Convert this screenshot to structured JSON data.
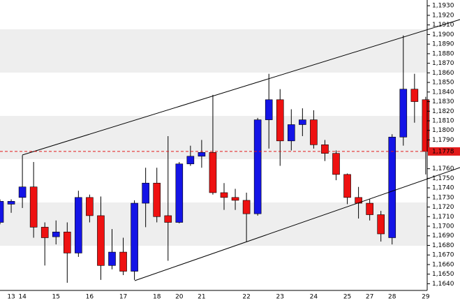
{
  "chart_data": {
    "type": "candlestick",
    "categories": [
      null,
      "13",
      "14",
      null,
      null,
      "15",
      null,
      null,
      "16",
      null,
      null,
      "17",
      null,
      null,
      "18",
      null,
      "20",
      null,
      "21",
      null,
      null,
      null,
      "22",
      null,
      null,
      "23",
      null,
      null,
      "24",
      null,
      null,
      "25",
      null,
      "27",
      null,
      "28",
      null,
      null,
      "29"
    ],
    "open": [
      1.1704,
      1.1723,
      1.173,
      1.1741,
      1.1699,
      1.1689,
      1.1694,
      1.1672,
      1.173,
      1.1711,
      1.1659,
      1.1673,
      1.1653,
      1.1724,
      1.1745,
      1.1711,
      1.1704,
      1.1765,
      1.1773,
      1.1777,
      1.1735,
      1.173,
      1.1727,
      1.1713,
      1.1811,
      1.1832,
      1.1789,
      1.1806,
      1.1811,
      1.1785,
      1.1776,
      1.1754,
      1.173,
      1.1724,
      1.1712,
      1.1688,
      1.1793,
      1.1843,
      1.1832
    ],
    "high": [
      1.1728,
      1.1728,
      1.1774,
      1.1767,
      1.1704,
      1.1706,
      1.1704,
      1.1737,
      1.1733,
      1.1731,
      1.1697,
      1.1688,
      1.1727,
      1.1761,
      1.1761,
      1.1794,
      1.1767,
      1.1784,
      1.179,
      1.1837,
      1.1745,
      1.1739,
      1.1735,
      1.1813,
      1.1859,
      1.1843,
      1.1822,
      1.1823,
      1.1821,
      1.179,
      1.1779,
      1.1755,
      1.1741,
      1.1728,
      1.1716,
      1.1796,
      1.1899,
      1.1859,
      1.1835
    ],
    "low": [
      1.1702,
      1.1714,
      1.1719,
      1.1688,
      1.1659,
      1.1681,
      1.1641,
      1.1668,
      1.1704,
      1.1644,
      1.1655,
      1.1649,
      1.1644,
      1.1699,
      1.1704,
      1.1664,
      1.1703,
      1.1763,
      1.1761,
      1.1733,
      1.1717,
      1.1717,
      1.1684,
      1.1711,
      1.1781,
      1.1763,
      1.1779,
      1.1794,
      1.1781,
      1.1768,
      1.1748,
      1.1723,
      1.1708,
      1.1706,
      1.1684,
      1.1681,
      1.1784,
      1.1808,
      1.1754
    ],
    "close": [
      1.1726,
      1.1726,
      1.1741,
      1.1699,
      1.1688,
      1.1694,
      1.1672,
      1.173,
      1.1711,
      1.1659,
      1.1673,
      1.1653,
      1.1724,
      1.1745,
      1.171,
      1.1704,
      1.1765,
      1.1773,
      1.1777,
      1.1735,
      1.173,
      1.1727,
      1.1713,
      1.1811,
      1.1832,
      1.1789,
      1.1806,
      1.1811,
      1.1785,
      1.1776,
      1.1754,
      1.173,
      1.1724,
      1.1712,
      1.1692,
      1.1793,
      1.1843,
      1.183,
      1.1778
    ],
    "up_color": "#1414e6",
    "down_color": "#ee1111",
    "ylim": [
      1.1633,
      1.1936
    ],
    "yticks": [
      {
        "value": 1.193,
        "label": "1,1930"
      },
      {
        "value": 1.192,
        "label": "1,1920"
      },
      {
        "value": 1.191,
        "label": "1,1910"
      },
      {
        "value": 1.19,
        "label": "1,1900"
      },
      {
        "value": 1.189,
        "label": "1,1890"
      },
      {
        "value": 1.188,
        "label": "1,1880"
      },
      {
        "value": 1.187,
        "label": "1,1870"
      },
      {
        "value": 1.186,
        "label": "1,1860"
      },
      {
        "value": 1.185,
        "label": "1,1850"
      },
      {
        "value": 1.184,
        "label": "1,1840"
      },
      {
        "value": 1.183,
        "label": "1,1830"
      },
      {
        "value": 1.182,
        "label": "1,1820"
      },
      {
        "value": 1.181,
        "label": "1,1810"
      },
      {
        "value": 1.18,
        "label": "1,1800"
      },
      {
        "value": 1.179,
        "label": "1,1790"
      },
      {
        "value": 1.176,
        "label": "1,1760"
      },
      {
        "value": 1.175,
        "label": "1,1750"
      },
      {
        "value": 1.174,
        "label": "1,1740"
      },
      {
        "value": 1.173,
        "label": "1,1730"
      },
      {
        "value": 1.172,
        "label": "1,1720"
      },
      {
        "value": 1.171,
        "label": "1,1710"
      },
      {
        "value": 1.17,
        "label": "1,1700"
      },
      {
        "value": 1.169,
        "label": "1,1690"
      },
      {
        "value": 1.168,
        "label": "1,1680"
      },
      {
        "value": 1.167,
        "label": "1,1670"
      },
      {
        "value": 1.166,
        "label": "1,1660"
      },
      {
        "value": 1.165,
        "label": "1,1650"
      },
      {
        "value": 1.164,
        "label": "1,1640"
      }
    ],
    "last_price": {
      "value": 1.1778,
      "label": "1,1778"
    },
    "last_price_color": "#e31b1b"
  }
}
